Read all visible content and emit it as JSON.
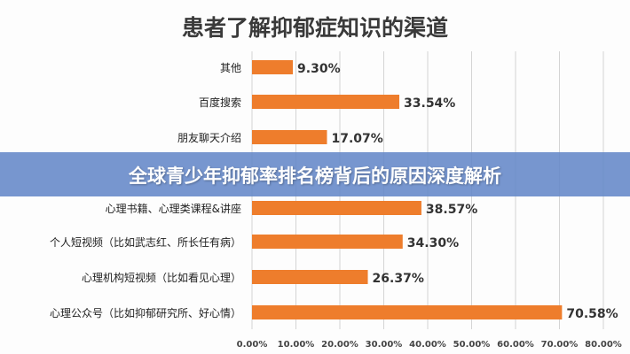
{
  "banner": {
    "text": "全球青少年抑郁率排名榜背后的原因深度解析"
  },
  "chart_data": {
    "type": "bar",
    "orientation": "horizontal",
    "title": "患者了解抑郁症知识的渠道",
    "categories": [
      "其他",
      "百度搜索",
      "朋友聊天介绍",
      "心理书籍、心理类课程&讲座",
      "个人短视频（比如武志红、所长任有病）",
      "心理机构短视频（比如看见心理）",
      "心理公众号（比如抑郁研究所、好心情）"
    ],
    "values": [
      9.3,
      33.54,
      17.07,
      38.57,
      34.3,
      26.37,
      70.58
    ],
    "data_labels": [
      "9.30%",
      "33.54%",
      "17.07%",
      "38.57%",
      "34.30%",
      "26.37%",
      "70.58%"
    ],
    "xlim": [
      0,
      80
    ],
    "xticks": [
      "0.00%",
      "10.00%",
      "20.00%",
      "30.00%",
      "40.00%",
      "50.00%",
      "60.00%",
      "70.00%",
      "80.00%"
    ],
    "grid": true,
    "bar_color": "#ee7d2c"
  }
}
